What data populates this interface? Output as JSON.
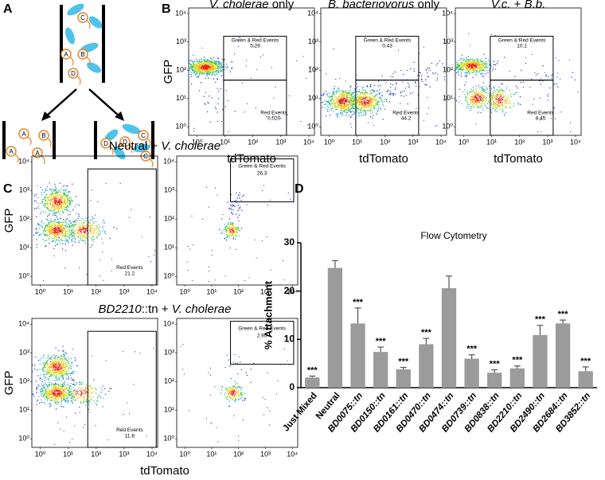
{
  "panel_labels": [
    "A",
    "B",
    "C",
    "D"
  ],
  "panel_a": {
    "top_cells": [
      "C",
      "A",
      "B",
      "D"
    ],
    "left_cells": [
      "B",
      "A",
      "A",
      "A"
    ],
    "right_cells": [
      "D",
      "D",
      "C",
      "C"
    ]
  },
  "panel_b": {
    "y_label": "GFP",
    "x_label": "tdTomato",
    "tick_labels": [
      "10⁰",
      "10¹",
      "10²",
      "10³",
      "10⁴"
    ],
    "plots": [
      {
        "title": [
          {
            "text": "V. cholerae",
            "italic": true
          },
          {
            "text": " only",
            "italic": false
          }
        ],
        "upper_label": "Green & Red Events",
        "upper_value": 5.26,
        "lower_label": "Red Events",
        "lower_value": {
          "value": 0.02,
          "label": "0.020"
        }
      },
      {
        "title": [
          {
            "text": "B. bacteriovorus",
            "italic": true
          },
          {
            "text": " only",
            "italic": false
          }
        ],
        "upper_label": "Green & Red Events",
        "upper_value": 0.43,
        "lower_label": "Red Events",
        "lower_value": 44.2
      },
      {
        "title": [
          {
            "text": "V.c.",
            "italic": true
          },
          {
            "text": " + ",
            "italic": false
          },
          {
            "text": "B.b.",
            "italic": true
          }
        ],
        "upper_label": "Green & Red Events",
        "upper_value": 10.1,
        "lower_label": "Red Events",
        "lower_value": 8.45
      }
    ]
  },
  "panel_c": {
    "y_label": "GFP",
    "x_label": "tdTomato",
    "tick_labels": [
      "10⁰",
      "10¹",
      "10²",
      "10³",
      "10⁴"
    ],
    "rows": [
      [
        {
          "text": "Neutral + ",
          "italic": false
        },
        {
          "text": "V. cholerae",
          "italic": true
        }
      ],
      [
        {
          "text": "BD2210",
          "italic": true
        },
        {
          "text": "::tn + ",
          "italic": false
        },
        {
          "text": "V. cholerae",
          "italic": true
        }
      ]
    ],
    "plots": [
      {
        "gate_label": "Red Events",
        "gate_value": 21.2
      },
      {
        "gate_label": "Green & Red Events",
        "gate_value": 26.3
      },
      {
        "gate_label": "Red Events",
        "gate_value": 11.8
      },
      {
        "gate_label": "Green & Red Events",
        "gate_value": 2.95
      }
    ]
  },
  "chart_data": {
    "type": "bar",
    "title": "Flow Cytometry",
    "y_label": "% Attachment",
    "categories": [
      "Just Mixed",
      "Neutral",
      "BD0075::tn",
      "BD0150::tn",
      "BD0161::tn",
      "BD0470::tn",
      "BD0474::tn",
      "BD0739::tn",
      "BD0838::tn",
      "BD2210::tn",
      "BD2490::tn",
      "BD2684::tn",
      "BD3852::tn"
    ],
    "category_italic": [
      false,
      false,
      true,
      true,
      true,
      true,
      true,
      true,
      true,
      true,
      true,
      true,
      true
    ],
    "values": [
      2.1,
      24.8,
      13.3,
      7.4,
      3.8,
      9.0,
      20.6,
      6.0,
      3.1,
      4.0,
      10.9,
      13.3,
      3.4
    ],
    "errors": [
      0.3,
      1.5,
      3.2,
      1.0,
      0.4,
      1.2,
      2.5,
      0.8,
      0.6,
      0.5,
      2.0,
      0.7,
      0.9
    ],
    "annotations": [
      "***",
      null,
      "***",
      "***",
      "***",
      "***",
      null,
      "***",
      "***",
      "***",
      "***",
      "***",
      "***"
    ],
    "color": "#9b9b9b",
    "ylim": [
      0,
      30
    ],
    "yticks": [
      0,
      10,
      20,
      30
    ]
  }
}
